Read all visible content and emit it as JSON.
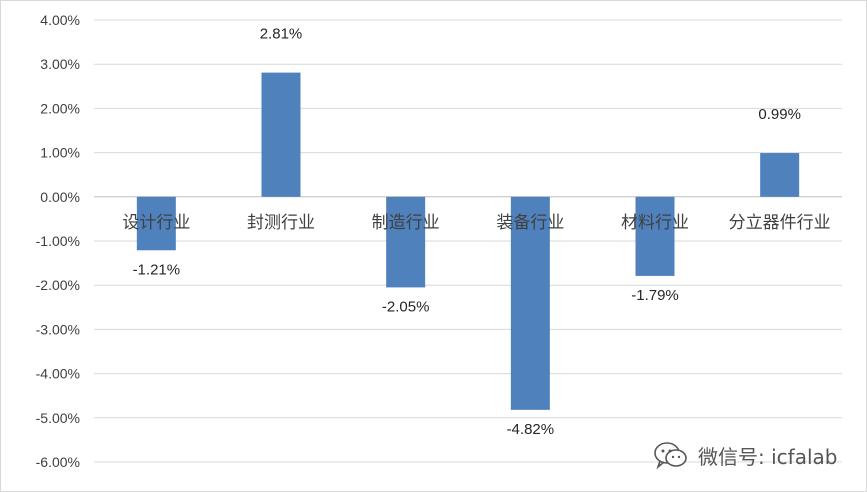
{
  "chart_data": {
    "type": "bar",
    "categories": [
      "设计行业",
      "封测行业",
      "制造行业",
      "装备行业",
      "材料行业",
      "分立器件行业"
    ],
    "values": [
      -1.21,
      2.81,
      -2.05,
      -4.82,
      -1.79,
      0.99
    ],
    "data_labels": [
      "-1.21%",
      "2.81%",
      "-2.05%",
      "-4.82%",
      "-1.79%",
      "0.99%"
    ],
    "title": "",
    "xlabel": "",
    "ylabel": "",
    "ylim": [
      -6,
      4
    ],
    "yticks": [
      4,
      3,
      2,
      1,
      0,
      -1,
      -2,
      -3,
      -4,
      -5,
      -6
    ],
    "ytick_labels": [
      "4.00%",
      "3.00%",
      "2.00%",
      "1.00%",
      "0.00%",
      "-1.00%",
      "-2.00%",
      "-3.00%",
      "-4.00%",
      "-5.00%",
      "-6.00%"
    ],
    "grid": true,
    "legend": "none",
    "bar_color": "#4f81bd"
  },
  "watermark": {
    "text": "微信号: icfalab",
    "icon": "wechat-icon"
  }
}
